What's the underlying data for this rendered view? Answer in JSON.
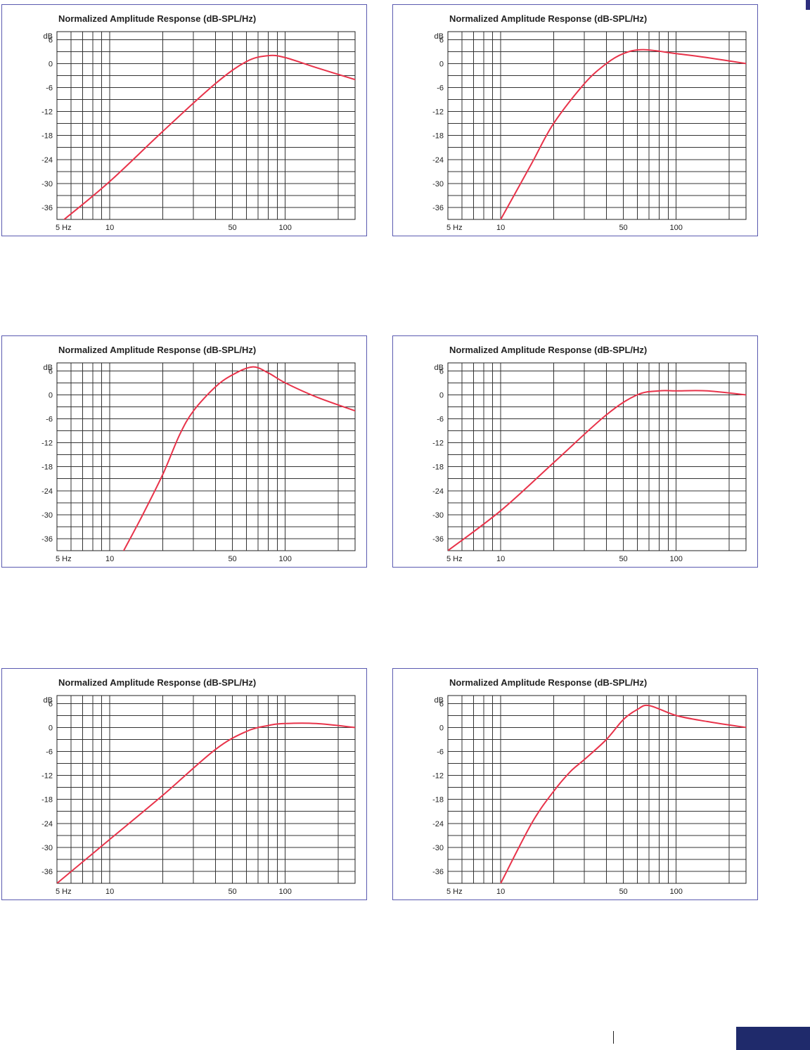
{
  "colors": {
    "curve": "#e8334a",
    "panel_border": "#5a5ab0",
    "footer_block": "#1f2a6b"
  },
  "chart_data": [
    {
      "type": "line",
      "title": "Normalized Amplitude Response (dB-SPL/Hz)",
      "ylabel": "dB",
      "xscale": "log",
      "xlim": [
        5,
        250
      ],
      "ylim": [
        -39,
        8
      ],
      "xticks": [
        5,
        10,
        50,
        100
      ],
      "xtick_labels": [
        "5 Hz",
        "10",
        "50",
        "100"
      ],
      "yticks": [
        6,
        0,
        -6,
        -12,
        -18,
        -24,
        -30,
        -36
      ],
      "grid": true,
      "series": [
        {
          "x": [
            5.5,
            10,
            20,
            40,
            60,
            80,
            100,
            150,
            250
          ],
          "y": [
            -39,
            -29.5,
            -17,
            -5,
            0.5,
            2,
            1.5,
            -1,
            -4
          ]
        }
      ]
    },
    {
      "type": "line",
      "title": "Normalized Amplitude Response (dB-SPL/Hz)",
      "ylabel": "dB",
      "xscale": "log",
      "xlim": [
        5,
        250
      ],
      "ylim": [
        -39,
        8
      ],
      "xticks": [
        5,
        10,
        50,
        100
      ],
      "xtick_labels": [
        "5 Hz",
        "10",
        "50",
        "100"
      ],
      "yticks": [
        6,
        0,
        -6,
        -12,
        -18,
        -24,
        -30,
        -36
      ],
      "grid": true,
      "series": [
        {
          "x": [
            10,
            15,
            20,
            30,
            40,
            50,
            65,
            100,
            150,
            250
          ],
          "y": [
            -39,
            -25,
            -15,
            -5,
            0,
            2.5,
            3.5,
            2.5,
            1.5,
            0
          ]
        }
      ]
    },
    {
      "type": "line",
      "title": "Normalized Amplitude Response (dB-SPL/Hz)",
      "ylabel": "dB",
      "xscale": "log",
      "xlim": [
        5,
        250
      ],
      "ylim": [
        -39,
        8
      ],
      "xticks": [
        5,
        10,
        50,
        100
      ],
      "xtick_labels": [
        "5 Hz",
        "10",
        "50",
        "100"
      ],
      "yticks": [
        6,
        0,
        -6,
        -12,
        -18,
        -24,
        -30,
        -36
      ],
      "grid": true,
      "series": [
        {
          "x": [
            12,
            15,
            20,
            25,
            30,
            40,
            50,
            65,
            80,
            100,
            150,
            250
          ],
          "y": [
            -39,
            -31,
            -20,
            -10,
            -4,
            2,
            5,
            7,
            5.5,
            3,
            -0.5,
            -4
          ]
        }
      ]
    },
    {
      "type": "line",
      "title": "Normalized Amplitude Response (dB-SPL/Hz)",
      "ylabel": "dB",
      "xscale": "log",
      "xlim": [
        5,
        250
      ],
      "ylim": [
        -39,
        8
      ],
      "xticks": [
        5,
        10,
        50,
        100
      ],
      "xtick_labels": [
        "5 Hz",
        "10",
        "50",
        "100"
      ],
      "yticks": [
        6,
        0,
        -6,
        -12,
        -18,
        -24,
        -30,
        -36
      ],
      "grid": true,
      "series": [
        {
          "x": [
            5,
            10,
            20,
            40,
            60,
            80,
            100,
            150,
            250
          ],
          "y": [
            -39,
            -29,
            -17,
            -5,
            0,
            1,
            1,
            1,
            0
          ]
        }
      ]
    },
    {
      "type": "line",
      "title": "Normalized Amplitude Response (dB-SPL/Hz)",
      "ylabel": "dB",
      "xscale": "log",
      "xlim": [
        5,
        250
      ],
      "ylim": [
        -39,
        8
      ],
      "xticks": [
        5,
        10,
        50,
        100
      ],
      "xtick_labels": [
        "5 Hz",
        "10",
        "50",
        "100"
      ],
      "yticks": [
        6,
        0,
        -6,
        -12,
        -18,
        -24,
        -30,
        -36
      ],
      "grid": true,
      "series": [
        {
          "x": [
            5,
            10,
            20,
            40,
            60,
            80,
            100,
            150,
            250
          ],
          "y": [
            -39,
            -28,
            -17,
            -5.5,
            -1,
            0.5,
            1,
            1,
            0
          ]
        }
      ]
    },
    {
      "type": "line",
      "title": "Normalized Amplitude Response (dB-SPL/Hz)",
      "ylabel": "dB",
      "xscale": "log",
      "xlim": [
        5,
        250
      ],
      "ylim": [
        -39,
        8
      ],
      "xticks": [
        5,
        10,
        50,
        100
      ],
      "xtick_labels": [
        "5 Hz",
        "10",
        "50",
        "100"
      ],
      "yticks": [
        6,
        0,
        -6,
        -12,
        -18,
        -24,
        -30,
        -36
      ],
      "grid": true,
      "series": [
        {
          "x": [
            10,
            15,
            20,
            25,
            30,
            40,
            50,
            60,
            70,
            100,
            150,
            250
          ],
          "y": [
            -39,
            -24,
            -16,
            -11,
            -8,
            -3,
            2,
            4.5,
            5.5,
            3,
            1.5,
            0
          ]
        }
      ]
    }
  ]
}
